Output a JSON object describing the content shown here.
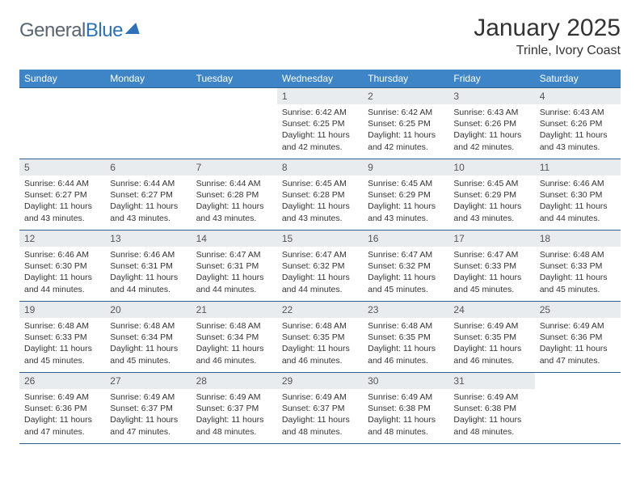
{
  "brand": {
    "part1": "General",
    "part2": "Blue"
  },
  "title": "January 2025",
  "location": "Trinle, Ivory Coast",
  "colors": {
    "header_bg": "#3d85c6",
    "header_text": "#ffffff",
    "daynum_bg": "#e9ecef",
    "row_border": "#2d5d8a",
    "brand_gray": "#5a6570",
    "brand_blue": "#2d72b8"
  },
  "weekdays": [
    "Sunday",
    "Monday",
    "Tuesday",
    "Wednesday",
    "Thursday",
    "Friday",
    "Saturday"
  ],
  "weeks": [
    [
      {
        "empty": true
      },
      {
        "empty": true
      },
      {
        "empty": true
      },
      {
        "day": "1",
        "sunrise": "6:42 AM",
        "sunset": "6:25 PM",
        "daylight": "11 hours and 42 minutes."
      },
      {
        "day": "2",
        "sunrise": "6:42 AM",
        "sunset": "6:25 PM",
        "daylight": "11 hours and 42 minutes."
      },
      {
        "day": "3",
        "sunrise": "6:43 AM",
        "sunset": "6:26 PM",
        "daylight": "11 hours and 42 minutes."
      },
      {
        "day": "4",
        "sunrise": "6:43 AM",
        "sunset": "6:26 PM",
        "daylight": "11 hours and 43 minutes."
      }
    ],
    [
      {
        "day": "5",
        "sunrise": "6:44 AM",
        "sunset": "6:27 PM",
        "daylight": "11 hours and 43 minutes."
      },
      {
        "day": "6",
        "sunrise": "6:44 AM",
        "sunset": "6:27 PM",
        "daylight": "11 hours and 43 minutes."
      },
      {
        "day": "7",
        "sunrise": "6:44 AM",
        "sunset": "6:28 PM",
        "daylight": "11 hours and 43 minutes."
      },
      {
        "day": "8",
        "sunrise": "6:45 AM",
        "sunset": "6:28 PM",
        "daylight": "11 hours and 43 minutes."
      },
      {
        "day": "9",
        "sunrise": "6:45 AM",
        "sunset": "6:29 PM",
        "daylight": "11 hours and 43 minutes."
      },
      {
        "day": "10",
        "sunrise": "6:45 AM",
        "sunset": "6:29 PM",
        "daylight": "11 hours and 43 minutes."
      },
      {
        "day": "11",
        "sunrise": "6:46 AM",
        "sunset": "6:30 PM",
        "daylight": "11 hours and 44 minutes."
      }
    ],
    [
      {
        "day": "12",
        "sunrise": "6:46 AM",
        "sunset": "6:30 PM",
        "daylight": "11 hours and 44 minutes."
      },
      {
        "day": "13",
        "sunrise": "6:46 AM",
        "sunset": "6:31 PM",
        "daylight": "11 hours and 44 minutes."
      },
      {
        "day": "14",
        "sunrise": "6:47 AM",
        "sunset": "6:31 PM",
        "daylight": "11 hours and 44 minutes."
      },
      {
        "day": "15",
        "sunrise": "6:47 AM",
        "sunset": "6:32 PM",
        "daylight": "11 hours and 44 minutes."
      },
      {
        "day": "16",
        "sunrise": "6:47 AM",
        "sunset": "6:32 PM",
        "daylight": "11 hours and 45 minutes."
      },
      {
        "day": "17",
        "sunrise": "6:47 AM",
        "sunset": "6:33 PM",
        "daylight": "11 hours and 45 minutes."
      },
      {
        "day": "18",
        "sunrise": "6:48 AM",
        "sunset": "6:33 PM",
        "daylight": "11 hours and 45 minutes."
      }
    ],
    [
      {
        "day": "19",
        "sunrise": "6:48 AM",
        "sunset": "6:33 PM",
        "daylight": "11 hours and 45 minutes."
      },
      {
        "day": "20",
        "sunrise": "6:48 AM",
        "sunset": "6:34 PM",
        "daylight": "11 hours and 45 minutes."
      },
      {
        "day": "21",
        "sunrise": "6:48 AM",
        "sunset": "6:34 PM",
        "daylight": "11 hours and 46 minutes."
      },
      {
        "day": "22",
        "sunrise": "6:48 AM",
        "sunset": "6:35 PM",
        "daylight": "11 hours and 46 minutes."
      },
      {
        "day": "23",
        "sunrise": "6:48 AM",
        "sunset": "6:35 PM",
        "daylight": "11 hours and 46 minutes."
      },
      {
        "day": "24",
        "sunrise": "6:49 AM",
        "sunset": "6:35 PM",
        "daylight": "11 hours and 46 minutes."
      },
      {
        "day": "25",
        "sunrise": "6:49 AM",
        "sunset": "6:36 PM",
        "daylight": "11 hours and 47 minutes."
      }
    ],
    [
      {
        "day": "26",
        "sunrise": "6:49 AM",
        "sunset": "6:36 PM",
        "daylight": "11 hours and 47 minutes."
      },
      {
        "day": "27",
        "sunrise": "6:49 AM",
        "sunset": "6:37 PM",
        "daylight": "11 hours and 47 minutes."
      },
      {
        "day": "28",
        "sunrise": "6:49 AM",
        "sunset": "6:37 PM",
        "daylight": "11 hours and 48 minutes."
      },
      {
        "day": "29",
        "sunrise": "6:49 AM",
        "sunset": "6:37 PM",
        "daylight": "11 hours and 48 minutes."
      },
      {
        "day": "30",
        "sunrise": "6:49 AM",
        "sunset": "6:38 PM",
        "daylight": "11 hours and 48 minutes."
      },
      {
        "day": "31",
        "sunrise": "6:49 AM",
        "sunset": "6:38 PM",
        "daylight": "11 hours and 48 minutes."
      },
      {
        "empty": true
      }
    ]
  ],
  "labels": {
    "sunrise": "Sunrise:",
    "sunset": "Sunset:",
    "daylight": "Daylight:"
  }
}
